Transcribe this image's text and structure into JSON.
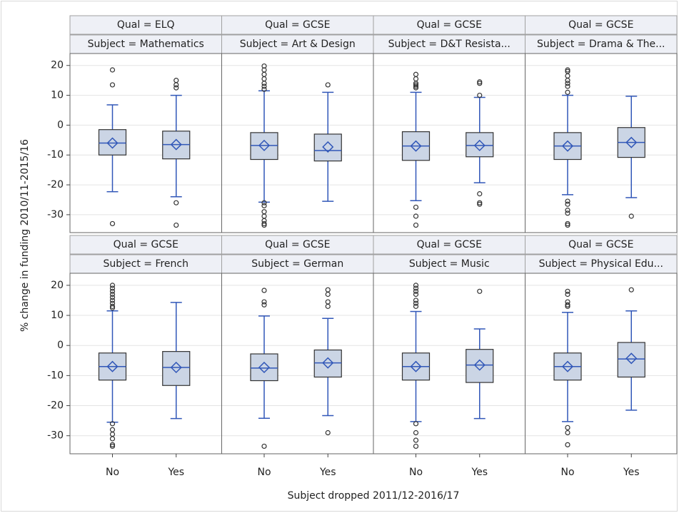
{
  "chart_data": {
    "type": "box",
    "ylabel": "% change in funding 2010/11-2015/16",
    "xlabel": "Subject dropped 2011/12-2016/17",
    "categories": [
      "No",
      "Yes"
    ],
    "ylim": [
      -36,
      24
    ],
    "yticks": [
      20,
      10,
      0,
      -10,
      -20,
      -30
    ],
    "grid": true,
    "box_color": "#cbd5e5",
    "line_color": "#3157b8",
    "outlier_color": "#333333",
    "panels": [
      {
        "qual": "Qual = ELQ",
        "subject": "Subject = Mathematics",
        "boxes": [
          {
            "min": -22.3,
            "q1": -10,
            "median": -6,
            "q3": -1.5,
            "max": 6.8,
            "mean": -6,
            "outliers": [
              18.5,
              13.5,
              -33
            ]
          },
          {
            "min": -24,
            "q1": -11.3,
            "median": -6.5,
            "q3": -2,
            "max": 10,
            "mean": -6.5,
            "outliers": [
              15,
              13.5,
              12.5,
              -26,
              -33.5
            ]
          }
        ]
      },
      {
        "qual": "Qual = GCSE",
        "subject": "Subject = Art & Design",
        "boxes": [
          {
            "min": -25.8,
            "q1": -11.5,
            "median": -6.8,
            "q3": -2.5,
            "max": 11.5,
            "mean": -6.8,
            "outliers": [
              19.8,
              18.5,
              17,
              15.5,
              14,
              13,
              12,
              -26,
              -27,
              -29,
              -30.5,
              -32,
              -33,
              -33.5
            ]
          },
          {
            "min": -25.5,
            "q1": -12,
            "median": -8.5,
            "q3": -3,
            "max": 11,
            "mean": -7.3,
            "outliers": [
              13.5
            ]
          }
        ]
      },
      {
        "qual": "Qual = GCSE",
        "subject": "Subject = D&T Resista...",
        "boxes": [
          {
            "min": -25.3,
            "q1": -11.8,
            "median": -7,
            "q3": -2.2,
            "max": 11,
            "mean": -7,
            "outliers": [
              17,
              15.5,
              14,
              13.5,
              13,
              12.5,
              -27.5,
              -30.5,
              -33.5
            ]
          },
          {
            "min": -19.3,
            "q1": -10.6,
            "median": -6.8,
            "q3": -2.5,
            "max": 9.3,
            "mean": -6.8,
            "outliers": [
              14.5,
              14,
              10,
              -23,
              -26,
              -26.5
            ]
          }
        ]
      },
      {
        "qual": "Qual = GCSE",
        "subject": "Subject = Drama & The...",
        "boxes": [
          {
            "min": -23.3,
            "q1": -11.5,
            "median": -7,
            "q3": -2.5,
            "max": 10,
            "mean": -7,
            "outliers": [
              18.5,
              18,
              16.5,
              15,
              14,
              13,
              11,
              -25.5,
              -26.5,
              -28.5,
              -29.5,
              -33,
              -33.5
            ]
          },
          {
            "min": -24.3,
            "q1": -10.8,
            "median": -5.8,
            "q3": -0.8,
            "max": 9.7,
            "mean": -5.8,
            "outliers": [
              -30.5
            ]
          }
        ]
      },
      {
        "qual": "Qual = GCSE",
        "subject": "Subject = French",
        "boxes": [
          {
            "min": -25.5,
            "q1": -11.5,
            "median": -7,
            "q3": -2.5,
            "max": 11.5,
            "mean": -7,
            "outliers": [
              20,
              19,
              18,
              17,
              16,
              15,
              14,
              13,
              12.5,
              -26,
              -28,
              -29.5,
              -31,
              -33,
              -33.5
            ]
          },
          {
            "min": -24.3,
            "q1": -13.3,
            "median": -7.3,
            "q3": -2,
            "max": 14.3,
            "mean": -7.3,
            "outliers": []
          }
        ]
      },
      {
        "qual": "Qual = GCSE",
        "subject": "Subject = German",
        "boxes": [
          {
            "min": -24.2,
            "q1": -11.7,
            "median": -7.5,
            "q3": -2.8,
            "max": 9.8,
            "mean": -7.3,
            "outliers": [
              18.3,
              14.5,
              13.5,
              -33.5
            ]
          },
          {
            "min": -23.3,
            "q1": -10.5,
            "median": -5.8,
            "q3": -1.5,
            "max": 9,
            "mean": -5.8,
            "outliers": [
              18.5,
              17,
              14.5,
              13,
              -29
            ]
          }
        ]
      },
      {
        "qual": "Qual = GCSE",
        "subject": "Subject = Music",
        "boxes": [
          {
            "min": -25.3,
            "q1": -11.5,
            "median": -7,
            "q3": -2.5,
            "max": 11.3,
            "mean": -7,
            "outliers": [
              20,
              19,
              18,
              17,
              15,
              14,
              13,
              -26,
              -29,
              -31.5,
              -33.5
            ]
          },
          {
            "min": -24.3,
            "q1": -12.3,
            "median": -6.5,
            "q3": -1.3,
            "max": 5.5,
            "mean": -6.5,
            "outliers": [
              18
            ]
          }
        ]
      },
      {
        "qual": "Qual = GCSE",
        "subject": "Subject = Physical Edu...",
        "boxes": [
          {
            "min": -25.3,
            "q1": -11.5,
            "median": -7,
            "q3": -2.5,
            "max": 11,
            "mean": -7,
            "outliers": [
              18,
              17,
              14.5,
              13.5,
              13,
              -27.3,
              -29,
              -33
            ]
          },
          {
            "min": -21.5,
            "q1": -10.5,
            "median": -4.5,
            "q3": 1,
            "max": 11.5,
            "mean": -4.3,
            "outliers": [
              18.5
            ]
          }
        ]
      }
    ]
  }
}
